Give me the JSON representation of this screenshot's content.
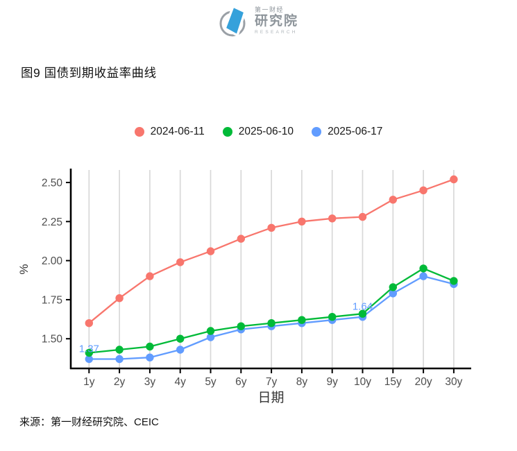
{
  "logo": {
    "line1": "第一财经",
    "line2": "研究院",
    "line3": "RESEARCH"
  },
  "title": "图9 国债到期收益率曲线",
  "source": "来源：第一财经研究院、CEIC",
  "colors": {
    "series_red": "#F8766D",
    "series_green": "#00BA38",
    "series_blue": "#619CFF",
    "grid": "#D8D8D8",
    "axis": "#000000",
    "tick_label": "#4D4D4D",
    "axis_title": "#333333",
    "annotation": "#619CFF",
    "logo_blue": "#35A1DB",
    "logo_gray": "#9AA0A6"
  },
  "chart_data": {
    "type": "line",
    "title": "图9 国债到期收益率曲线",
    "xlabel": "日期",
    "ylabel": "%",
    "categories": [
      "1y",
      "2y",
      "3y",
      "4y",
      "5y",
      "6y",
      "7y",
      "8y",
      "9y",
      "10y",
      "15y",
      "20y",
      "30y"
    ],
    "series": [
      {
        "name": "2024-06-11",
        "color": "#F8766D",
        "values": [
          1.6,
          1.76,
          1.9,
          1.99,
          2.06,
          2.14,
          2.21,
          2.25,
          2.27,
          2.28,
          2.39,
          2.45,
          2.52
        ]
      },
      {
        "name": "2025-06-10",
        "color": "#00BA38",
        "values": [
          1.41,
          1.43,
          1.45,
          1.5,
          1.55,
          1.58,
          1.6,
          1.62,
          1.64,
          1.66,
          1.83,
          1.95,
          1.87
        ]
      },
      {
        "name": "2025-06-17",
        "color": "#619CFF",
        "values": [
          1.37,
          1.37,
          1.38,
          1.43,
          1.51,
          1.56,
          1.58,
          1.6,
          1.62,
          1.64,
          1.79,
          1.9,
          1.85
        ]
      }
    ],
    "yticks": [
      1.5,
      1.75,
      2.0,
      2.25,
      2.5
    ],
    "ytick_labels": [
      "1.50",
      "1.75",
      "2.00",
      "2.25",
      "2.50"
    ],
    "ylim": [
      1.31,
      2.58
    ],
    "grid": "vertical-only",
    "legend_position": "top",
    "annotations": [
      {
        "text": "1.37",
        "series": "2025-06-17",
        "category": "1y",
        "value": 1.37
      },
      {
        "text": "1.64",
        "series": "2025-06-17",
        "category": "10y",
        "value": 1.64
      }
    ]
  }
}
